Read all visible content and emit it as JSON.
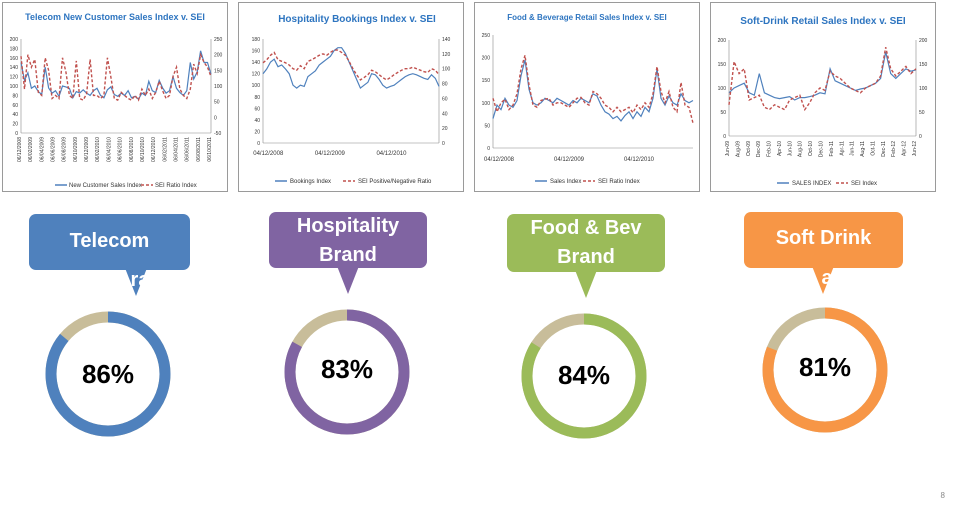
{
  "chart_data": [
    {
      "type": "line",
      "title": "Telecom New Customer Sales Index v. SEI",
      "ylim_left": [
        0,
        200
      ],
      "left_ticks": [
        "0",
        "20",
        "40",
        "60",
        "80",
        "100",
        "120",
        "140",
        "160",
        "180",
        "200"
      ],
      "ylim_right": [
        -50,
        250
      ],
      "right_ticks": [
        "-50",
        "0",
        "50",
        "100",
        "150",
        "200",
        "250"
      ],
      "x_ticks": [
        "06/12/2008",
        "06/02/2009",
        "06/04/2009",
        "06/06/2009",
        "06/08/2009",
        "06/10/2009",
        "06/12/2009",
        "06/02/2010",
        "06/04/2010",
        "06/06/2010",
        "06/08/2010",
        "06/10/2010",
        "06/12/2010",
        "06/02/2011",
        "06/04/2011",
        "06/06/2011",
        "06/08/2011",
        "06/10/2011"
      ],
      "series": [
        {
          "name": "New Customer Sales Index",
          "axis": "left",
          "color": "#4f81bd",
          "dashed": false,
          "values": [
            150,
            112,
            128,
            95,
            100,
            88,
            82,
            140,
            96,
            85,
            90,
            78,
            100,
            98,
            95,
            75,
            88,
            85,
            92,
            85,
            80,
            90,
            95,
            80,
            75,
            92,
            98,
            82,
            78,
            85,
            80,
            90,
            75,
            78,
            72,
            85,
            80,
            110,
            90,
            86,
            112,
            96,
            85,
            90,
            120,
            95,
            86,
            80,
            90,
            150,
            115,
            130,
            175,
            150,
            150,
            125
          ]
        },
        {
          "name": "SEI Ratio Index",
          "axis": "right",
          "color": "#c0504d",
          "dashed": true,
          "values": [
            195,
            90,
            200,
            160,
            185,
            80,
            70,
            190,
            150,
            60,
            70,
            60,
            190,
            145,
            70,
            60,
            180,
            60,
            55,
            75,
            185,
            70,
            70,
            60,
            70,
            190,
            130,
            60,
            55,
            80,
            70,
            60,
            55,
            70,
            55,
            90,
            70,
            90,
            60,
            80,
            115,
            85,
            60,
            70,
            130,
            160,
            90,
            70,
            60,
            90,
            170,
            140,
            200,
            175,
            160,
            130
          ]
        }
      ]
    },
    {
      "type": "line",
      "title": "Hospitality Bookings Index v. SEI",
      "ylim_left": [
        0,
        180
      ],
      "left_ticks": [
        "0",
        "20",
        "40",
        "60",
        "80",
        "100",
        "120",
        "140",
        "160",
        "180"
      ],
      "ylim_right": [
        0,
        140
      ],
      "right_ticks": [
        "0",
        "20",
        "40",
        "60",
        "80",
        "100",
        "120",
        "140"
      ],
      "x_ticks": [
        "04/12/2008",
        "04/12/2009",
        "04/12/2010"
      ],
      "series": [
        {
          "name": "Bookings Index",
          "axis": "left",
          "color": "#4f81bd",
          "dashed": false,
          "values": [
            120,
            128,
            140,
            145,
            132,
            135,
            128,
            120,
            100,
            95,
            100,
            98,
            115,
            120,
            125,
            135,
            140,
            145,
            150,
            160,
            165,
            165,
            155,
            140,
            125,
            110,
            95,
            100,
            105,
            120,
            118,
            110,
            100,
            95,
            98,
            100,
            105,
            110,
            115,
            118,
            120,
            118,
            115,
            112,
            110,
            118,
            112,
            98
          ]
        },
        {
          "name": "SEI Positive/Negative Ratio",
          "axis": "right",
          "color": "#c0504d",
          "dashed": true,
          "values": [
            108,
            112,
            118,
            122,
            112,
            110,
            108,
            105,
            100,
            98,
            104,
            100,
            110,
            112,
            115,
            118,
            120,
            118,
            122,
            125,
            125,
            122,
            118,
            110,
            100,
            92,
            85,
            88,
            92,
            98,
            96,
            92,
            88,
            85,
            88,
            92,
            95,
            98,
            100,
            100,
            102,
            100,
            98,
            96,
            95,
            100,
            98,
            92
          ]
        }
      ]
    },
    {
      "type": "line",
      "title": "Food & Beverage Retail Sales Index v. SEI",
      "ylim": [
        0,
        250
      ],
      "left_ticks": [
        "0",
        "50",
        "100",
        "150",
        "200",
        "250"
      ],
      "x_ticks": [
        "04/12/2008",
        "04/12/2009",
        "04/12/2010"
      ],
      "series": [
        {
          "name": "Sales Index",
          "axis": "left",
          "color": "#4f81bd",
          "dashed": false,
          "values": [
            65,
            95,
            85,
            110,
            95,
            90,
            105,
            160,
            195,
            130,
            100,
            95,
            100,
            110,
            105,
            100,
            110,
            105,
            100,
            95,
            105,
            100,
            110,
            105,
            100,
            120,
            115,
            95,
            80,
            75,
            65,
            70,
            60,
            72,
            80,
            65,
            80,
            70,
            90,
            80,
            110,
            175,
            110,
            95,
            115,
            100,
            95,
            120,
            105,
            100,
            105
          ]
        },
        {
          "name": "SEI Ratio Index",
          "axis": "left",
          "color": "#c0504d",
          "dashed": true,
          "values": [
            110,
            80,
            100,
            108,
            85,
            95,
            120,
            175,
            205,
            140,
            95,
            90,
            105,
            108,
            110,
            95,
            100,
            100,
            95,
            90,
            100,
            110,
            112,
            100,
            95,
            125,
            120,
            110,
            95,
            90,
            80,
            90,
            80,
            85,
            90,
            78,
            95,
            85,
            100,
            90,
            120,
            180,
            125,
            100,
            125,
            90,
            80,
            145,
            95,
            90,
            55
          ]
        }
      ]
    },
    {
      "type": "line",
      "title": "Soft-Drink Retail Sales Index v. SEI",
      "ylim": [
        0,
        200
      ],
      "left_ticks": [
        "0",
        "50",
        "100",
        "150",
        "200"
      ],
      "right_ticks": [
        "0",
        "50",
        "100",
        "150",
        "200"
      ],
      "x_ticks": [
        "Jun-09",
        "Aug-09",
        "Oct-09",
        "Dec-09",
        "Feb-10",
        "Apr-10",
        "Jun-10",
        "Aug-10",
        "Oct-10",
        "Dec-10",
        "Feb-11",
        "Apr-11",
        "Jun-11",
        "Aug-11",
        "Oct-11",
        "Dec-11",
        "Feb-12",
        "Apr-12",
        "Jun-12"
      ],
      "series": [
        {
          "name": "SALES INDEX",
          "axis": "left",
          "color": "#4f81bd",
          "dashed": false,
          "values": [
            90,
            100,
            105,
            110,
            90,
            85,
            130,
            90,
            85,
            80,
            78,
            80,
            82,
            75,
            80,
            80,
            82,
            85,
            90,
            88,
            140,
            115,
            110,
            105,
            100,
            95,
            98,
            100,
            105,
            110,
            120,
            175,
            130,
            120,
            130,
            140,
            135,
            138
          ]
        },
        {
          "name": "SEI Index",
          "axis": "left",
          "color": "#c0504d",
          "dashed": true,
          "values": [
            65,
            155,
            130,
            140,
            75,
            80,
            85,
            60,
            55,
            65,
            60,
            55,
            75,
            80,
            85,
            55,
            70,
            90,
            100,
            95,
            135,
            125,
            120,
            110,
            100,
            95,
            90,
            100,
            105,
            110,
            125,
            185,
            140,
            125,
            135,
            145,
            130,
            140
          ]
        }
      ]
    }
  ],
  "panels": [
    {
      "label_line1": "Telecom",
      "label_line2": "",
      "hidden_text": "ra",
      "percent": "86%",
      "value": 0.86,
      "color": "#4f81bd",
      "track": "#c8bd9a"
    },
    {
      "label_line1": "Hospitality",
      "label_line2": "Brand",
      "hidden_text": "",
      "percent": "83%",
      "value": 0.83,
      "color": "#8064a2",
      "track": "#c8bd9a"
    },
    {
      "label_line1": "Food & Bev",
      "label_line2": "Brand",
      "hidden_text": "",
      "percent": "84%",
      "value": 0.84,
      "color": "#9bbb59",
      "track": "#c8bd9a"
    },
    {
      "label_line1": "Soft Drink",
      "label_line2": "",
      "hidden_text": "a",
      "percent": "81%",
      "value": 0.81,
      "color": "#f79646",
      "track": "#c8bd9a"
    }
  ],
  "page_number": "8"
}
